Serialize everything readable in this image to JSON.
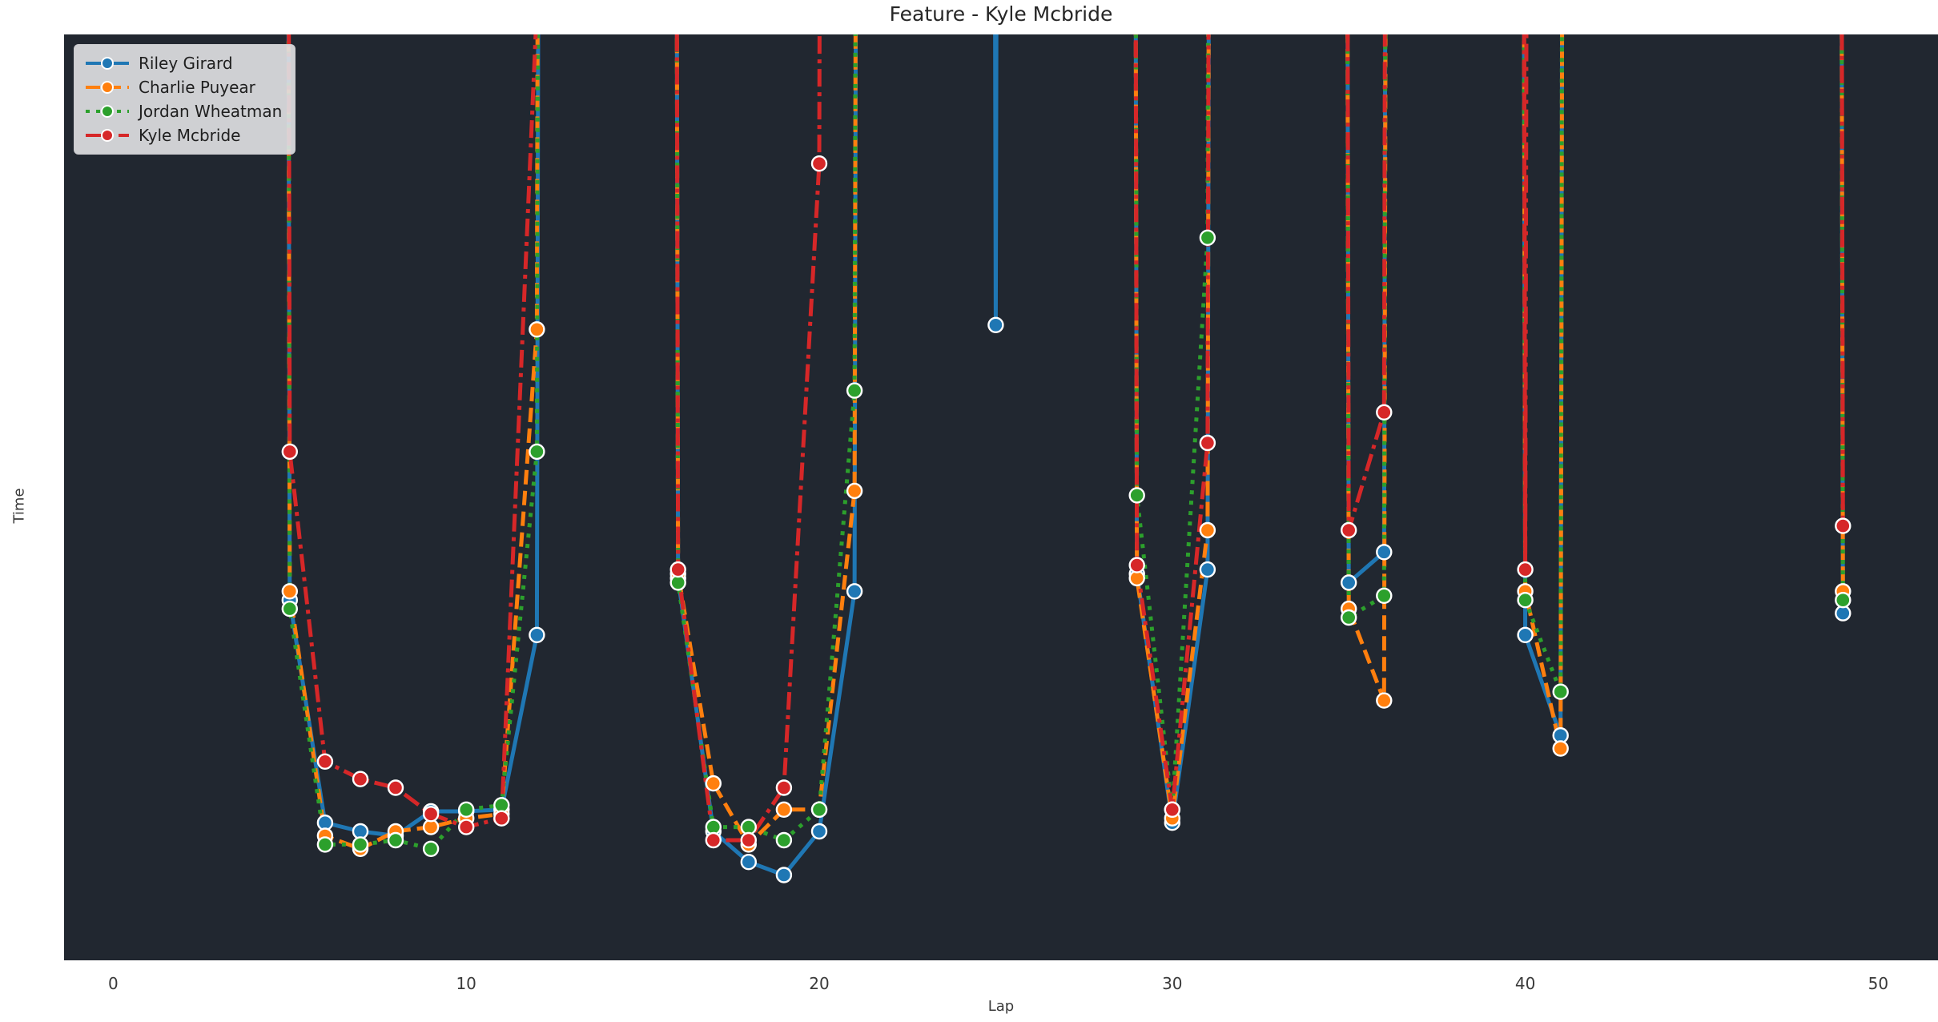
{
  "figure": {
    "background_color": "#ffffff",
    "plot_background_color": "#212730",
    "marker_edge_color": "#ffffff"
  },
  "chart_data": {
    "type": "line",
    "title": "Feature - Kyle Mcbride",
    "xlabel": "Lap",
    "ylabel": "Time",
    "x_ticks": [
      0,
      10,
      20,
      30,
      40,
      50
    ],
    "y_ticks": [
      30,
      32,
      34,
      36,
      38
    ],
    "xlim": [
      -1.4,
      51.7
    ],
    "ylim": [
      29.07,
      39.68
    ],
    "grid": false,
    "legend_position": "upper-left",
    "marker": "circle",
    "note": "null = caution/pit lap far above the visible time range; lines exit the top of the plot as near-vertical strokes",
    "x": [
      0,
      1,
      2,
      3,
      4,
      5,
      6,
      7,
      8,
      9,
      10,
      11,
      12,
      13,
      14,
      15,
      16,
      17,
      18,
      19,
      20,
      21,
      22,
      23,
      24,
      25,
      26,
      27,
      28,
      29,
      30,
      31,
      32,
      33,
      34,
      35,
      36,
      37,
      38,
      39,
      40,
      41,
      42,
      43,
      44,
      45,
      46,
      47,
      48,
      49
    ],
    "series": [
      {
        "name": "Riley Girard",
        "color": "#1f77b4",
        "line_style": "solid",
        "values": [
          null,
          null,
          null,
          null,
          null,
          33.2,
          30.65,
          30.55,
          30.5,
          30.78,
          30.78,
          30.8,
          32.8,
          null,
          null,
          null,
          33.45,
          30.55,
          30.2,
          30.05,
          30.55,
          33.3,
          null,
          null,
          null,
          36.35,
          null,
          null,
          null,
          33.5,
          30.65,
          33.55,
          null,
          null,
          null,
          33.4,
          33.75,
          null,
          null,
          null,
          32.8,
          31.65,
          null,
          null,
          null,
          null,
          null,
          null,
          null,
          33.05
        ]
      },
      {
        "name": "Charlie Puyear",
        "color": "#ff7f0e",
        "line_style": "dashed",
        "values": [
          null,
          null,
          null,
          null,
          null,
          33.3,
          30.5,
          30.35,
          30.55,
          30.6,
          30.7,
          30.75,
          36.3,
          null,
          null,
          null,
          33.5,
          31.1,
          30.4,
          30.8,
          30.8,
          34.45,
          null,
          null,
          null,
          null,
          null,
          null,
          null,
          33.45,
          30.7,
          34.0,
          null,
          null,
          null,
          33.1,
          32.05,
          null,
          null,
          null,
          33.3,
          31.5,
          null,
          null,
          null,
          null,
          null,
          null,
          null,
          33.3
        ]
      },
      {
        "name": "Jordan Wheatman",
        "color": "#2ca02c",
        "line_style": "dotted",
        "values": [
          null,
          null,
          null,
          null,
          null,
          33.1,
          30.4,
          30.4,
          30.45,
          30.35,
          30.8,
          30.85,
          34.9,
          null,
          null,
          null,
          33.4,
          30.6,
          30.6,
          30.45,
          30.8,
          35.6,
          null,
          null,
          null,
          null,
          null,
          null,
          null,
          34.4,
          30.8,
          37.35,
          null,
          null,
          null,
          33.0,
          33.25,
          null,
          null,
          null,
          33.2,
          32.15,
          null,
          null,
          null,
          null,
          null,
          null,
          null,
          33.2
        ]
      },
      {
        "name": "Kyle Mcbride",
        "color": "#d62728",
        "line_style": "dashdot",
        "values": [
          null,
          null,
          null,
          null,
          null,
          34.9,
          31.35,
          31.15,
          31.05,
          30.75,
          30.6,
          30.7,
          40.0,
          null,
          null,
          null,
          33.55,
          30.45,
          30.45,
          31.05,
          38.2,
          null,
          null,
          null,
          null,
          null,
          null,
          null,
          null,
          33.6,
          30.8,
          35.0,
          null,
          null,
          null,
          34.0,
          35.35,
          null,
          null,
          null,
          33.55,
          null,
          null,
          null,
          null,
          null,
          null,
          null,
          null,
          34.05
        ]
      }
    ]
  }
}
